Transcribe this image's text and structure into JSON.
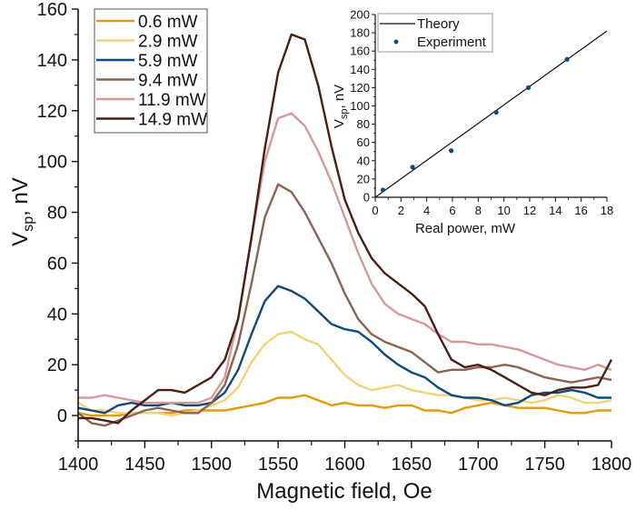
{
  "chart_data": [
    {
      "type": "line",
      "xlabel": "Magnetic field, Oe",
      "ylabel_main": "V",
      "ylabel_sub": "sp",
      "ylabel_tail": ", nV",
      "xlim": [
        1400,
        1800
      ],
      "ylim": [
        -10,
        160
      ],
      "xticks": [
        1400,
        1450,
        1500,
        1550,
        1600,
        1650,
        1700,
        1750,
        1800
      ],
      "xtick_labels": [
        "1400",
        "1450",
        "1500",
        "1550",
        "1600",
        "1650",
        "1700",
        "1750",
        "1800"
      ],
      "yticks": [
        0,
        20,
        40,
        60,
        80,
        100,
        120,
        140,
        160
      ],
      "ytick_labels": [
        "0",
        "20",
        "40",
        "60",
        "80",
        "100",
        "120",
        "140",
        "160"
      ],
      "legend_position": "top-left",
      "grid": false,
      "x": [
        1400,
        1410,
        1420,
        1430,
        1440,
        1450,
        1460,
        1470,
        1480,
        1490,
        1500,
        1510,
        1520,
        1530,
        1540,
        1550,
        1560,
        1570,
        1580,
        1590,
        1600,
        1610,
        1620,
        1630,
        1640,
        1650,
        1660,
        1670,
        1680,
        1690,
        1700,
        1710,
        1720,
        1730,
        1740,
        1750,
        1760,
        1770,
        1780,
        1790,
        1800
      ],
      "series": [
        {
          "name": "0.6 mW",
          "color": "#E09B0E",
          "values": [
            1,
            0,
            0,
            0,
            1,
            1,
            1,
            1,
            2,
            2,
            2,
            2,
            3,
            4,
            5,
            7,
            7,
            8,
            6,
            4,
            5,
            4,
            4,
            3,
            4,
            4,
            2,
            2,
            1,
            3,
            4,
            5,
            4,
            3,
            3,
            3,
            2,
            1,
            1,
            2,
            2
          ]
        },
        {
          "name": "2.9 mW",
          "color": "#F2D27A",
          "values": [
            5,
            2,
            2,
            1,
            1,
            1,
            1,
            0,
            1,
            2,
            4,
            6,
            11,
            21,
            28,
            32,
            33,
            30,
            28,
            22,
            16,
            12,
            10,
            11,
            12,
            10,
            9,
            8,
            8,
            7,
            6,
            6,
            7,
            6,
            5,
            6,
            8,
            7,
            5,
            5,
            6
          ]
        },
        {
          "name": "5.9 mW",
          "color": "#0E4A7B",
          "values": [
            3,
            2,
            1,
            4,
            5,
            4,
            4,
            5,
            4,
            4,
            5,
            9,
            18,
            32,
            45,
            51,
            49,
            46,
            41,
            36,
            34,
            33,
            29,
            24,
            20,
            17,
            15,
            11,
            8,
            7,
            7,
            6,
            4,
            5,
            8,
            9,
            9,
            10,
            9,
            7,
            7
          ]
        },
        {
          "name": "9.4 mW",
          "color": "#8C6353",
          "values": [
            1,
            -3,
            -4,
            -2,
            0,
            2,
            3,
            2,
            1,
            1,
            5,
            12,
            28,
            52,
            78,
            91,
            88,
            80,
            70,
            60,
            48,
            38,
            32,
            29,
            27,
            25,
            21,
            17,
            18,
            18,
            19,
            19,
            20,
            19,
            17,
            15,
            14,
            13,
            14,
            15,
            14
          ]
        },
        {
          "name": "11.9 mW",
          "color": "#D49A9A",
          "values": [
            7,
            7,
            8,
            7,
            6,
            5,
            5,
            5,
            5,
            5,
            7,
            15,
            38,
            70,
            100,
            117,
            119,
            114,
            104,
            92,
            78,
            64,
            52,
            44,
            40,
            38,
            36,
            32,
            29,
            29,
            28,
            28,
            27,
            26,
            24,
            22,
            20,
            19,
            18,
            20,
            18
          ]
        },
        {
          "name": "14.9 mW",
          "color": "#4A1E14",
          "values": [
            -1,
            -1,
            -2,
            -3,
            2,
            6,
            10,
            10,
            9,
            12,
            15,
            22,
            38,
            70,
            105,
            135,
            150,
            148,
            130,
            106,
            85,
            72,
            62,
            56,
            52,
            48,
            43,
            32,
            22,
            19,
            20,
            18,
            15,
            12,
            9,
            8,
            10,
            11,
            11,
            12,
            22
          ]
        }
      ]
    },
    {
      "type": "scatter",
      "xlabel": "Real power, mW",
      "ylabel_main": "V",
      "ylabel_sub": "sp",
      "ylabel_tail": ", nV",
      "xlim": [
        0,
        18
      ],
      "ylim": [
        0,
        200
      ],
      "xticks": [
        0,
        2,
        4,
        6,
        8,
        10,
        12,
        14,
        16,
        18
      ],
      "xtick_labels": [
        "0",
        "2",
        "4",
        "6",
        "8",
        "10",
        "12",
        "14",
        "16",
        "18"
      ],
      "yticks": [
        0,
        20,
        40,
        60,
        80,
        100,
        120,
        140,
        160,
        180,
        200
      ],
      "ytick_labels": [
        "0",
        "20",
        "40",
        "60",
        "80",
        "100",
        "120",
        "140",
        "160",
        "180",
        "200"
      ],
      "legend_position": "top-left",
      "grid": false,
      "series": [
        {
          "name": "Theory",
          "kind": "line",
          "color": "#111111",
          "x": [
            0,
            18
          ],
          "y": [
            0,
            182
          ]
        },
        {
          "name": "Experiment",
          "kind": "scatter",
          "color": "#0E4A7B",
          "x": [
            0.6,
            2.9,
            5.9,
            9.4,
            11.9,
            14.9
          ],
          "y": [
            8,
            33,
            51,
            93,
            120,
            151
          ]
        }
      ]
    }
  ]
}
